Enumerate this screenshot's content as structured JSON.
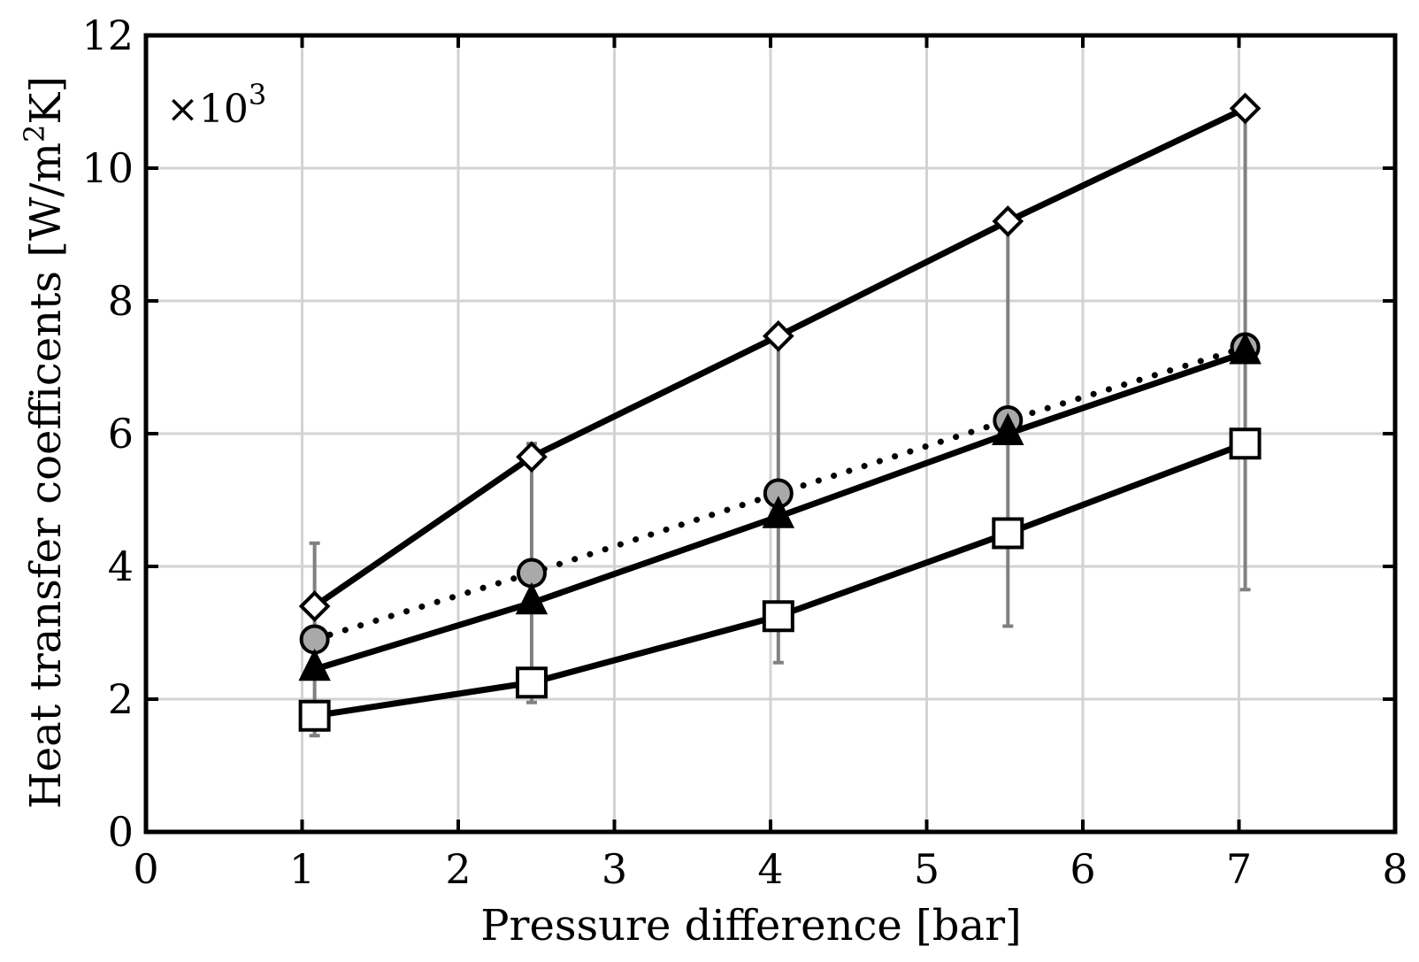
{
  "chart_data": {
    "type": "line",
    "xlabel": "Pressure difference [bar]",
    "ylabel_main": "Heat transfer coefficents [W/m",
    "ylabel_sup": "2",
    "ylabel_tail": "K]",
    "multiplier_base": "×10",
    "multiplier_exp": "3",
    "xlim": [
      0,
      8
    ],
    "ylim": [
      0,
      12
    ],
    "xticks": [
      "0",
      "1",
      "2",
      "3",
      "4",
      "5",
      "6",
      "7",
      "8"
    ],
    "yticks": [
      "0",
      "2",
      "4",
      "6",
      "8",
      "10",
      "12"
    ],
    "grid": true,
    "x": [
      1.08,
      2.47,
      4.05,
      5.52,
      7.04
    ],
    "series": [
      {
        "marker": "diamond",
        "line": "solid",
        "fill": "#ffffff",
        "values": [
          3.4,
          5.65,
          7.47,
          9.2,
          10.9
        ]
      },
      {
        "marker": "circle",
        "line": "dotted",
        "fill": "#a9a9a9",
        "values": [
          2.9,
          3.9,
          5.1,
          6.2,
          7.3
        ]
      },
      {
        "marker": "triangle",
        "line": "solid",
        "fill": "#000000",
        "values": [
          2.45,
          3.45,
          4.75,
          6.0,
          7.22
        ]
      },
      {
        "marker": "square",
        "line": "solid",
        "fill": "#ffffff",
        "values": [
          1.75,
          2.25,
          3.25,
          4.5,
          5.85
        ]
      }
    ],
    "error_bars": [
      {
        "x": 1.08,
        "low": 1.45,
        "high": 4.35
      },
      {
        "x": 2.47,
        "low": 1.95,
        "high": 5.85
      },
      {
        "x": 4.05,
        "low": 2.55,
        "high": 7.45
      },
      {
        "x": 5.52,
        "low": 3.1,
        "high": 9.2
      },
      {
        "x": 7.04,
        "low": 3.65,
        "high": 10.9
      }
    ]
  }
}
